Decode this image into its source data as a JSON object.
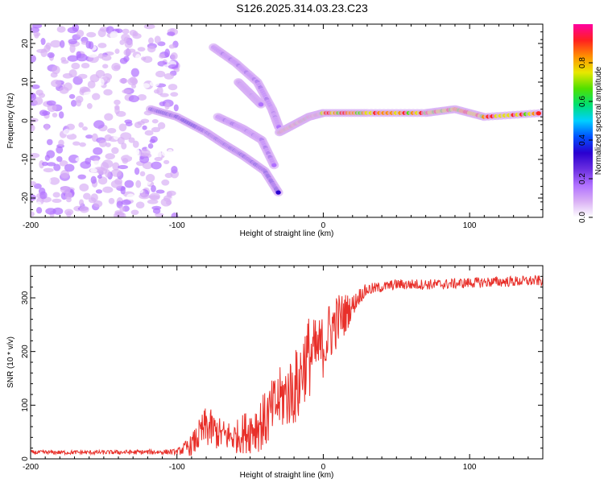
{
  "title": "S126.2025.314.03.23.C23",
  "colors": {
    "snr_line": "#e8302a",
    "axis": "#000000",
    "colorbar_stops": [
      "#ffffff",
      "#d9b0f5",
      "#b070ff",
      "#6a2ee0",
      "#2a00d0",
      "#0050ff",
      "#00d0ff",
      "#00e070",
      "#50e000",
      "#e8e800",
      "#ff9000",
      "#ff2020",
      "#ff00a0"
    ]
  },
  "chart_data": [
    {
      "type": "heatmap",
      "name": "spectrogram",
      "xlabel": "Height of straight line (km)",
      "ylabel": "Frequency (Hz)",
      "xlim": [
        -200,
        150
      ],
      "ylim": [
        -25,
        25
      ],
      "xticks": [
        -200,
        -100,
        0,
        100
      ],
      "xtick_labels": [
        "-200",
        "-100",
        "0",
        "100"
      ],
      "yticks": [
        -20,
        -10,
        0,
        10,
        20
      ],
      "ytick_labels": [
        "-20",
        "-10",
        "0",
        "10",
        "20"
      ],
      "colorbar": {
        "label": "Normalized spectral amplitude",
        "range": [
          0,
          1
        ],
        "ticks": [
          0.0,
          0.2,
          0.4,
          0.6,
          0.8
        ],
        "tick_labels": [
          "0.0",
          "0.2",
          "0.4",
          "0.6",
          "0.8"
        ]
      },
      "features": [
        {
          "label": "noise region",
          "x_range": [
            -200,
            -100
          ],
          "y_range": [
            -25,
            25
          ],
          "amplitude": 0.15
        },
        {
          "label": "descending branch",
          "points": [
            [
              -118,
              3
            ],
            [
              -100,
              1
            ],
            [
              -80,
              -3
            ],
            [
              -68,
              -6
            ],
            [
              -55,
              -9
            ],
            [
              -40,
              -13
            ],
            [
              -30,
              -19
            ]
          ],
          "amplitude": 0.3
        },
        {
          "label": "upper arc",
          "points": [
            [
              -75,
              19
            ],
            [
              -60,
              15
            ],
            [
              -45,
              10
            ],
            [
              -35,
              3
            ],
            [
              -30,
              -2
            ]
          ],
          "amplitude": 0.2
        },
        {
          "label": "inner arc",
          "points": [
            [
              -58,
              10
            ],
            [
              -50,
              7
            ],
            [
              -42,
              4
            ]
          ],
          "amplitude": 0.2
        },
        {
          "label": "lower arc",
          "points": [
            [
              -72,
              1
            ],
            [
              -55,
              -2
            ],
            [
              -42,
              -5
            ],
            [
              -33,
              -12
            ]
          ],
          "amplitude": 0.2
        },
        {
          "label": "converging line",
          "points": [
            [
              -30,
              -3
            ],
            [
              -20,
              -1
            ],
            [
              -10,
              1
            ],
            [
              0,
              2
            ],
            [
              30,
              2
            ],
            [
              70,
              2
            ],
            [
              90,
              3
            ],
            [
              110,
              1
            ],
            [
              150,
              2
            ]
          ],
          "amplitude": 0.85
        }
      ]
    },
    {
      "type": "line",
      "name": "snr",
      "xlabel": "Height of straight line (km)",
      "ylabel": "SNR (10 * v/v)",
      "xlim": [
        -200,
        150
      ],
      "ylim": [
        0,
        360
      ],
      "xticks": [
        -200,
        -100,
        0,
        100
      ],
      "xtick_labels": [
        "-200",
        "-100",
        "0",
        "100"
      ],
      "yticks": [
        0,
        100,
        200,
        300
      ],
      "ytick_labels": [
        "0",
        "100",
        "200",
        "300"
      ],
      "series": [
        {
          "name": "SNR",
          "x": [
            -200,
            -150,
            -100,
            -90,
            -80,
            -70,
            -60,
            -50,
            -40,
            -30,
            -20,
            -16,
            -15,
            -10,
            -5,
            0,
            5,
            10,
            15,
            20,
            25,
            30,
            40,
            50,
            60,
            80,
            100,
            120,
            150
          ],
          "y": [
            12,
            12,
            13,
            25,
            60,
            45,
            40,
            55,
            70,
            110,
            130,
            140,
            170,
            190,
            200,
            210,
            240,
            260,
            270,
            285,
            305,
            315,
            320,
            325,
            325,
            325,
            328,
            330,
            332
          ],
          "spread": [
            4,
            4,
            5,
            20,
            40,
            30,
            30,
            45,
            55,
            60,
            70,
            80,
            70,
            80,
            60,
            60,
            60,
            50,
            40,
            20,
            15,
            12,
            10,
            10,
            10,
            10,
            10,
            10,
            10
          ]
        }
      ]
    }
  ]
}
